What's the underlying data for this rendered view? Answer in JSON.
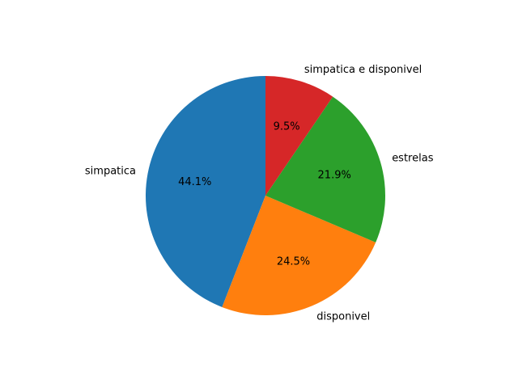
{
  "chart_data": {
    "type": "pie",
    "categories": [
      "simpatica",
      "disponivel",
      "estrelas",
      "simpatica e disponivel"
    ],
    "values": [
      44.1,
      24.5,
      21.9,
      9.5
    ],
    "percent_labels": [
      "44.1%",
      "24.5%",
      "21.9%",
      "9.5%"
    ],
    "colors": [
      "#1f77b4",
      "#ff7f0e",
      "#2ca02c",
      "#d62728"
    ],
    "start_angle_deg": 90,
    "direction": "counterclockwise",
    "legend": "none"
  }
}
